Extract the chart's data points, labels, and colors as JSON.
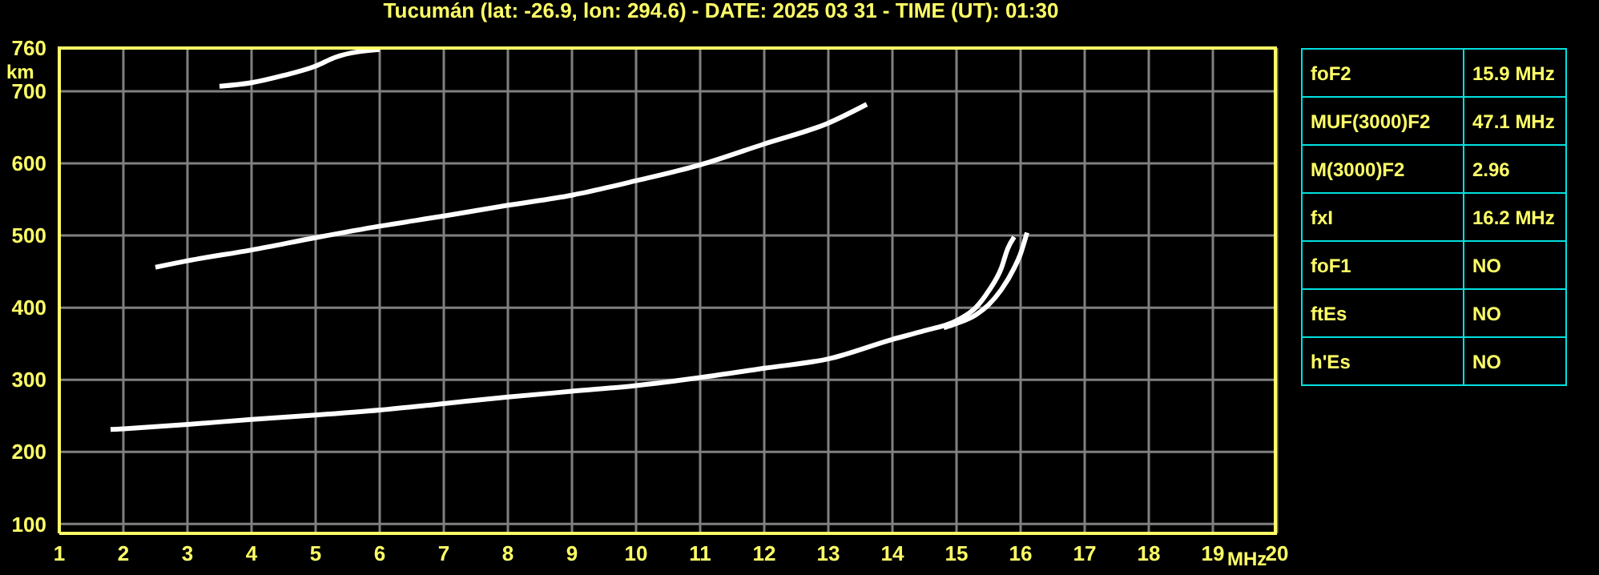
{
  "chart_data": [
    {
      "type": "line",
      "title": "Tucumán (lat: -26.9, lon: 294.6) - DATE: 2025 03 31 - TIME (UT): 01:30",
      "xlabel": "MHz",
      "ylabel": "km",
      "xlim": [
        1,
        20
      ],
      "xticks": [
        1,
        2,
        3,
        4,
        5,
        6,
        7,
        8,
        9,
        10,
        11,
        12,
        13,
        14,
        15,
        16,
        17,
        18,
        19,
        20
      ],
      "ylim": [
        87,
        760
      ],
      "yticks": [
        100,
        200,
        300,
        400,
        500,
        600,
        700,
        760
      ],
      "grid": true,
      "marker": "none",
      "line_style": "solid",
      "legend": false,
      "series": [
        {
          "color": "#ffffff",
          "x": [
            1.8,
            2,
            3,
            4,
            5,
            6,
            7,
            8,
            9,
            10,
            11,
            12,
            13,
            14,
            14.5,
            15,
            15.3,
            15.5,
            15.7,
            15.8,
            15.9
          ],
          "values": [
            231,
            232,
            238,
            245,
            251,
            258,
            267,
            276,
            284,
            292,
            303,
            316,
            329,
            356,
            368,
            382,
            400,
            423,
            455,
            482,
            498
          ]
        },
        {
          "color": "#ffffff",
          "x": [
            14.8,
            15,
            15.3,
            15.5,
            15.7,
            15.9,
            16,
            16.1
          ],
          "values": [
            372,
            378,
            390,
            404,
            425,
            455,
            475,
            504
          ]
        },
        {
          "color": "#ffffff",
          "x": [
            2.5,
            3,
            4,
            5,
            6,
            7,
            8,
            9,
            10,
            11,
            12,
            13,
            13.6
          ],
          "values": [
            456,
            465,
            480,
            497,
            513,
            527,
            542,
            556,
            576,
            598,
            627,
            656,
            682
          ]
        },
        {
          "color": "#ffffff",
          "x": [
            3.5,
            4,
            4.5,
            5,
            5.3,
            6
          ],
          "values": [
            707,
            712,
            722,
            735,
            747,
            758
          ]
        }
      ]
    },
    {
      "type": "other",
      "categories": [
        "foF2",
        "MUF(3000)F2",
        "M(3000)F2",
        "fxI",
        "foF1",
        "ftEs",
        "h'Es"
      ],
      "value_labels": [
        "15.9 MHz",
        "47.1 MHz",
        "2.96",
        "16.2 MHz",
        "NO",
        "NO",
        "NO"
      ]
    }
  ]
}
